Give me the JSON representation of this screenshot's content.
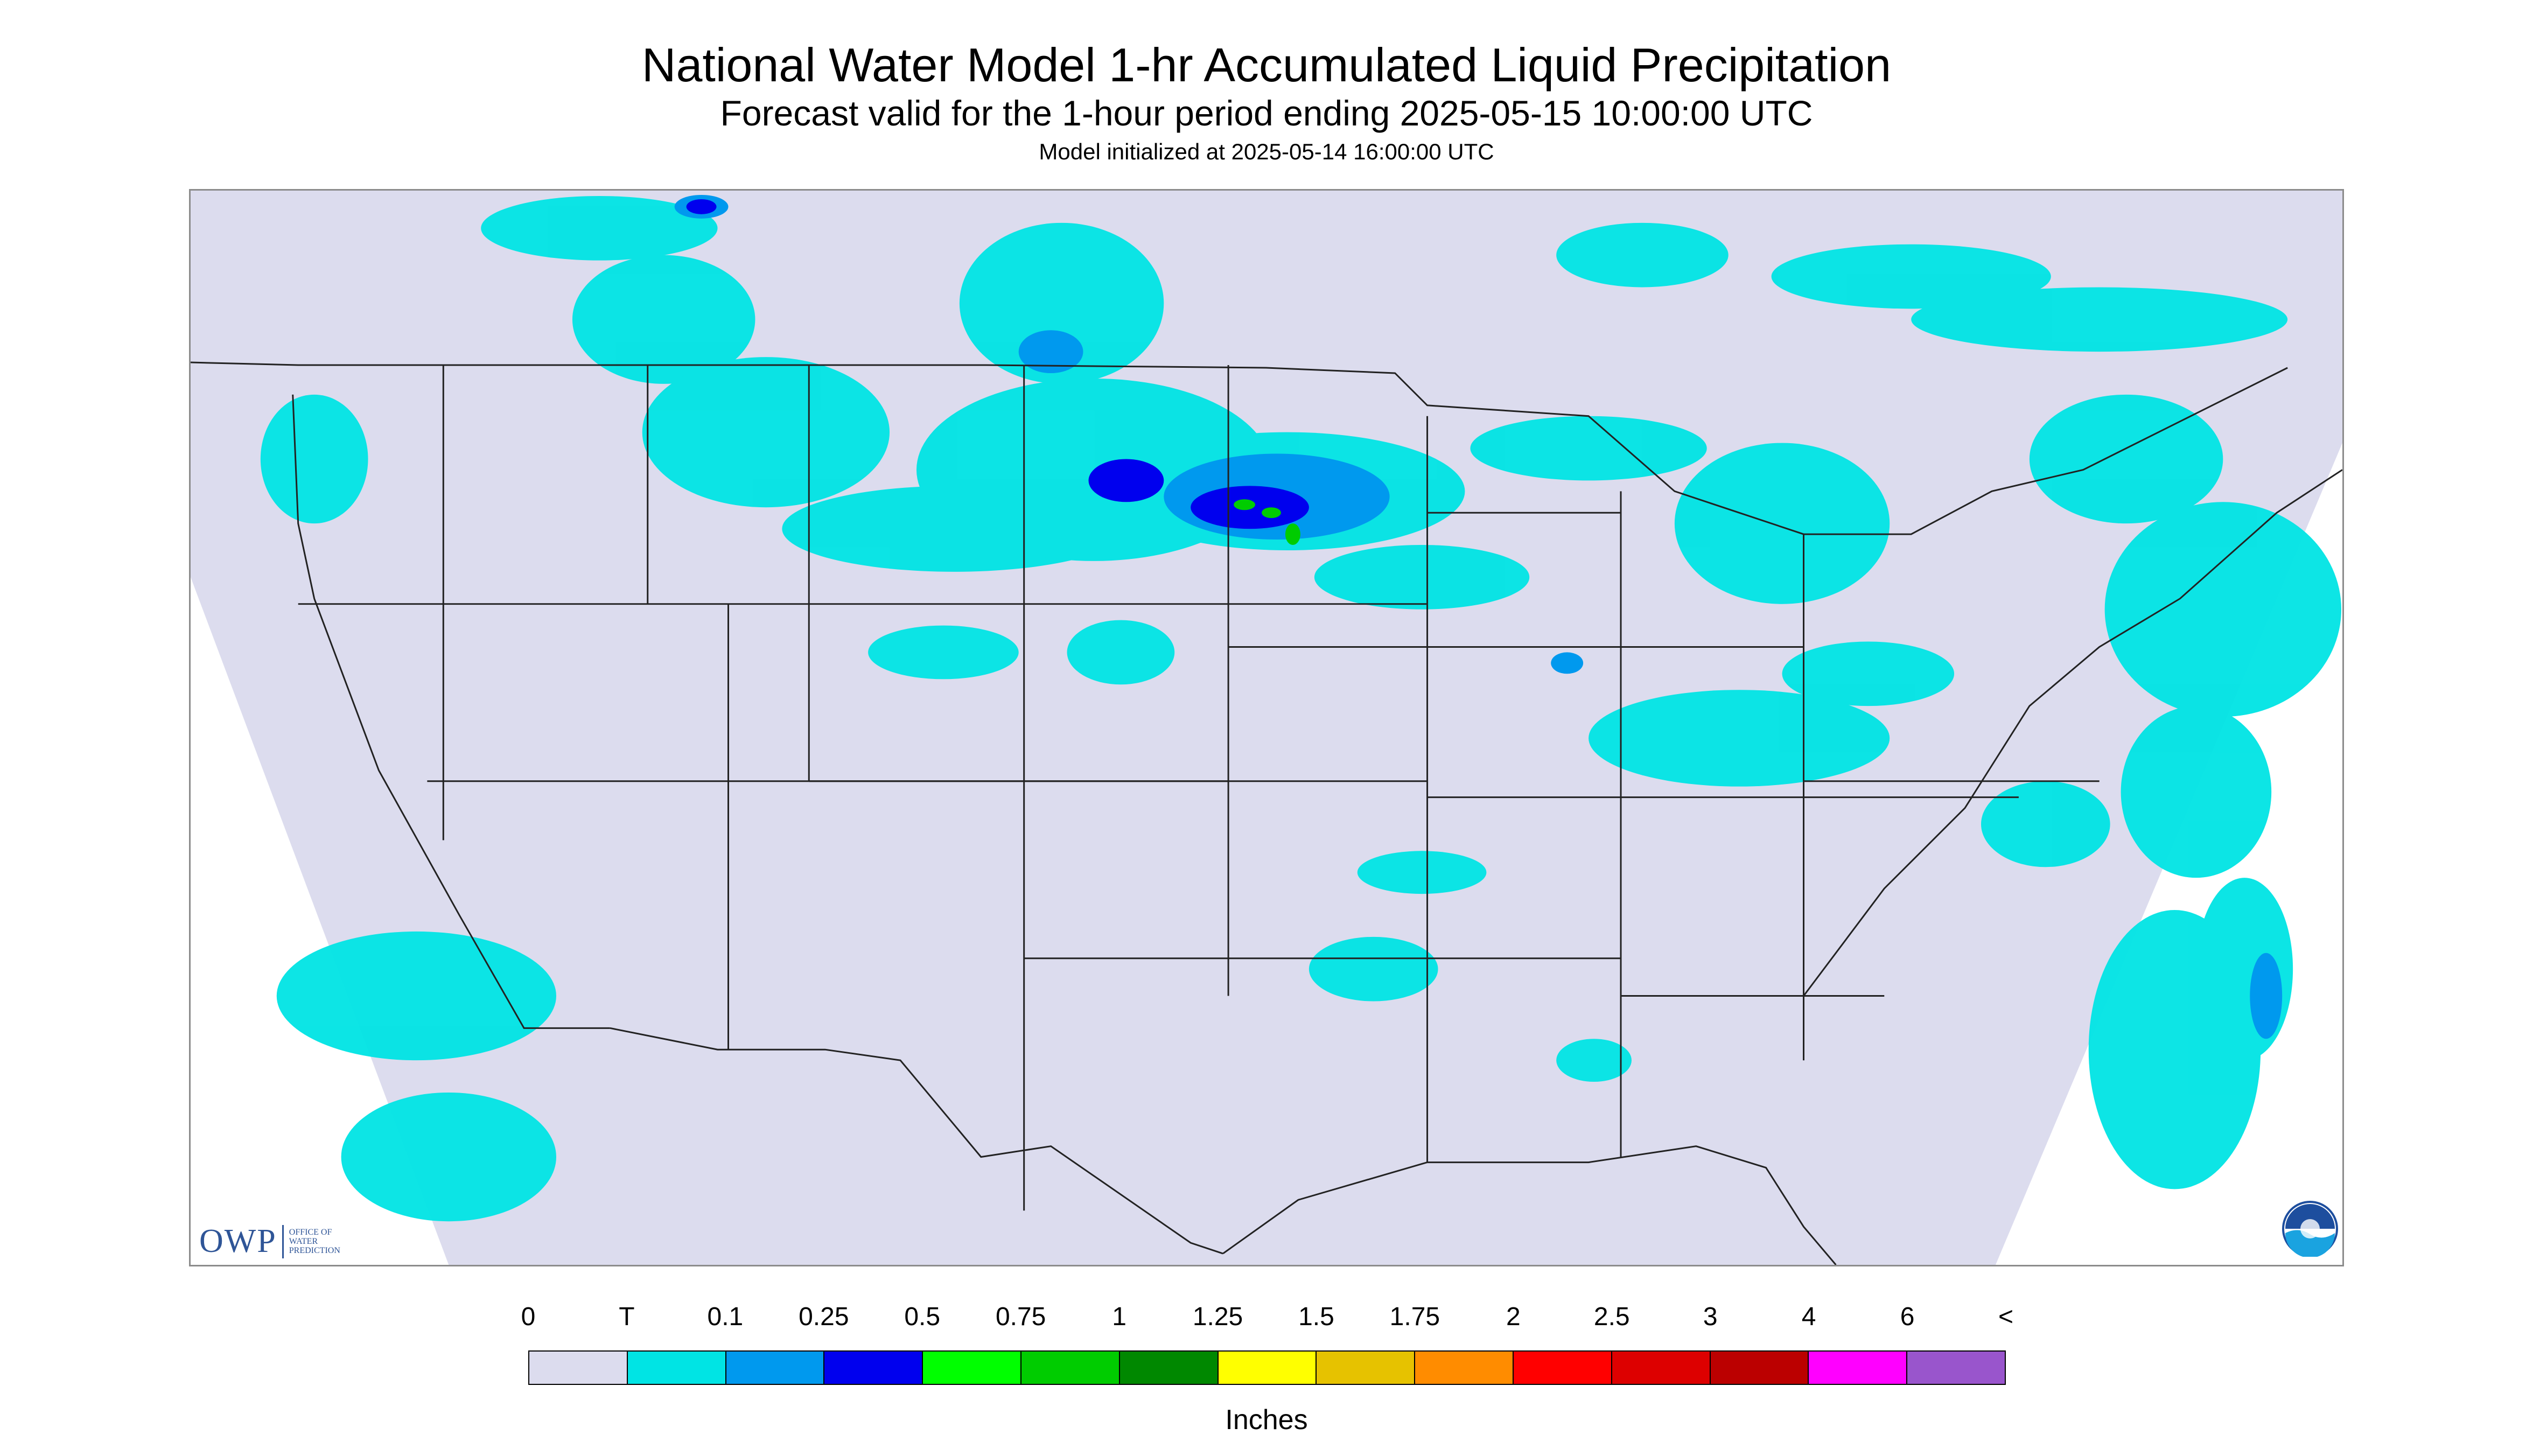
{
  "header": {
    "title": "National Water Model 1-hr Accumulated Liquid Precipitation",
    "subtitle": "Forecast valid for the 1-hour period ending 2025-05-15 10:00:00 UTC",
    "init": "Model initialized at 2025-05-14 16:00:00 UTC"
  },
  "map": {
    "region": "CONUS",
    "background_color": "#dcdcee",
    "boundary_color": "#222222",
    "outside_color": "#ffffff"
  },
  "logos": {
    "owp_mark": "OWP",
    "owp_sub": [
      "Office of",
      "Water",
      "Prediction"
    ],
    "noaa": "NOAA"
  },
  "legend": {
    "labels": [
      "0",
      "T",
      "0.1",
      "0.25",
      "0.5",
      "0.75",
      "1",
      "1.25",
      "1.5",
      "1.75",
      "2",
      "2.5",
      "3",
      "4",
      "6",
      "<"
    ],
    "colors": [
      "#dcdcee",
      "#00e4e4",
      "#0099ee",
      "#0000ee",
      "#00ff00",
      "#00cc00",
      "#008800",
      "#ffff00",
      "#e6c200",
      "#ff8c00",
      "#ff0000",
      "#dd0000",
      "#bb0000",
      "#ff00ff",
      "#9955cc"
    ],
    "units": "Inches"
  }
}
